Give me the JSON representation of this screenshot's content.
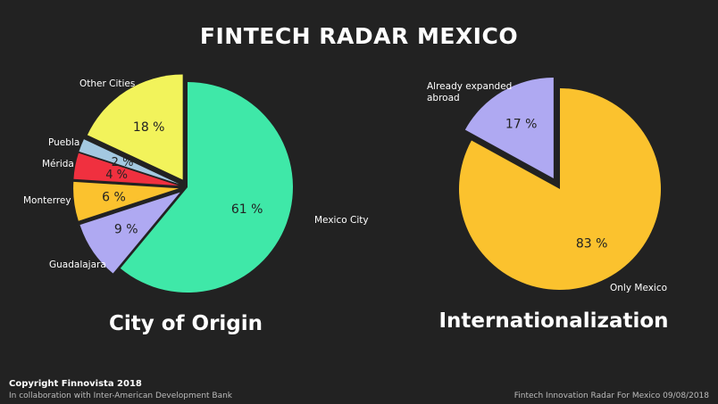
{
  "title": "FINTECH RADAR MEXICO",
  "footer": {
    "copyright": "Copyright Finnovista 2018",
    "collaboration": "In collaboration with Inter-American Development Bank",
    "source": "Fintech Innovation Radar For Mexico 09/08/2018"
  },
  "chart_data": [
    {
      "type": "pie",
      "title": "City of Origin",
      "slices": [
        {
          "label": "Mexico City",
          "value": 61,
          "value_label": "61 %",
          "color": "#3FE8A8",
          "exploded": false
        },
        {
          "label": "Guadalajara",
          "value": 9,
          "value_label": "9 %",
          "color": "#AFA9F2",
          "exploded": true
        },
        {
          "label": "Monterrey",
          "value": 6,
          "value_label": "6 %",
          "color": "#FBC22E",
          "exploded": true
        },
        {
          "label": "Mérida",
          "value": 4,
          "value_label": "4 %",
          "color": "#F0303F",
          "exploded": true
        },
        {
          "label": "Puebla",
          "value": 2,
          "value_label": "2 %",
          "color": "#A3C8E0",
          "exploded": true
        },
        {
          "label": "Other Cities",
          "value": 18,
          "value_label": "18 %",
          "color": "#F2F35B",
          "exploded": true
        }
      ]
    },
    {
      "type": "pie",
      "title": "Internationalization",
      "slices": [
        {
          "label": "Only Mexico",
          "value": 83,
          "value_label": "83 %",
          "color": "#FBC22E",
          "exploded": false
        },
        {
          "label": "Already expanded abroad",
          "value": 17,
          "value_label": "17 %",
          "color": "#AFA9F2",
          "exploded": true
        }
      ]
    }
  ]
}
